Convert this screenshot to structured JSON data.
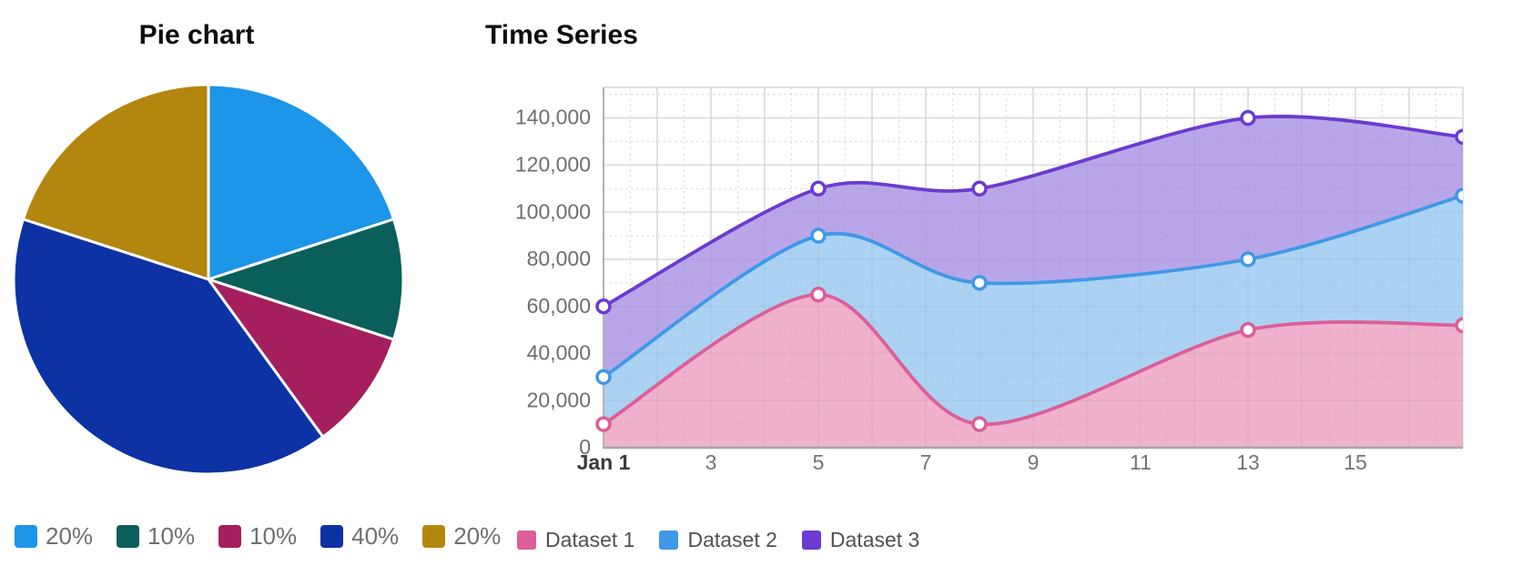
{
  "chart_data": [
    {
      "type": "pie",
      "title": "Pie chart",
      "slices": [
        {
          "label": "20%",
          "value": 20,
          "color": "#1d95e8"
        },
        {
          "label": "10%",
          "value": 10,
          "color": "#0a5f5a"
        },
        {
          "label": "10%",
          "value": 10,
          "color": "#a51f5e"
        },
        {
          "label": "40%",
          "value": 40,
          "color": "#0d32a4"
        },
        {
          "label": "20%",
          "value": 20,
          "color": "#b3860d"
        }
      ],
      "start_angle": "12 o'clock, clockwise",
      "slice_border_color": "#ffffff",
      "legend_position": "bottom"
    },
    {
      "type": "area",
      "title": "Time Series",
      "x_days": [
        1,
        5,
        8,
        13,
        17
      ],
      "series": [
        {
          "name": "Dataset 1",
          "values": [
            10000,
            65000,
            10000,
            50000,
            52000
          ],
          "color": "#dc5e98",
          "fill": "#efb1cc"
        },
        {
          "name": "Dataset 2",
          "values": [
            30000,
            90000,
            70000,
            80000,
            107000
          ],
          "color": "#3f99e8",
          "fill": "#abd2f3"
        },
        {
          "name": "Dataset 3",
          "values": [
            60000,
            110000,
            110000,
            140000,
            132000
          ],
          "color": "#6b3bd1",
          "fill": "#b9a6e8"
        }
      ],
      "draw_order": [
        "Dataset 3",
        "Dataset 2",
        "Dataset 1"
      ],
      "x_ticks": [
        {
          "pos": 1,
          "label": "Jan 1",
          "bold": true
        },
        {
          "pos": 3,
          "label": "3"
        },
        {
          "pos": 5,
          "label": "5"
        },
        {
          "pos": 7,
          "label": "7"
        },
        {
          "pos": 9,
          "label": "9"
        },
        {
          "pos": 11,
          "label": "11"
        },
        {
          "pos": 13,
          "label": "13"
        },
        {
          "pos": 15,
          "label": "15"
        }
      ],
      "y_ticks": [
        {
          "value": 0,
          "label": "0"
        },
        {
          "value": 20000,
          "label": "20,000"
        },
        {
          "value": 40000,
          "label": "40,000"
        },
        {
          "value": 60000,
          "label": "60,000"
        },
        {
          "value": 80000,
          "label": "80,000"
        },
        {
          "value": 100000,
          "label": "100,000"
        },
        {
          "value": 120000,
          "label": "120,000"
        },
        {
          "value": 140000,
          "label": "140,000"
        }
      ],
      "xlim": [
        1,
        17
      ],
      "ylim": [
        0,
        153000
      ],
      "grid": true,
      "minor_grid": "dotted, every 10,000 and every half day",
      "point_style": "white-filled circle with colored ring",
      "legend_position": "bottom"
    }
  ]
}
